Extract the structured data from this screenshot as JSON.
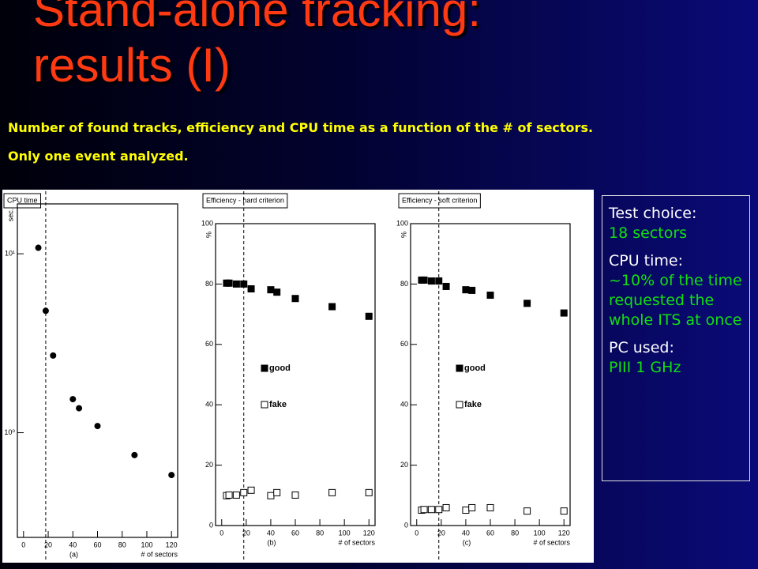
{
  "title": [
    "Stand-alone tracking:",
    "results (I)"
  ],
  "subtitle": [
    "Number of found tracks, efficiency and CPU time as a function of the # of sectors.",
    "Only one event analyzed."
  ],
  "notes": [
    {
      "label": "Test choice:",
      "text": "18 sectors"
    },
    {
      "label": "CPU time:",
      "text": "~10% of the time requested the whole ITS at once"
    },
    {
      "label": "PC used:",
      "text": "PIII 1 GHz"
    }
  ],
  "chart_data": [
    {
      "type": "scatter",
      "title": "CPU time",
      "x_label": "# of sectors",
      "y_label": "sec.",
      "panel_label": "(a)",
      "yscale": "log",
      "x": [
        12,
        18,
        24,
        40,
        45,
        60,
        90,
        120
      ],
      "series": [
        {
          "color": "#000000",
          "marker": "circle",
          "values": [
            10.8,
            4.8,
            2.7,
            1.54,
            1.37,
            1.09,
            0.75,
            0.58
          ]
        }
      ],
      "xlim": [
        -5,
        125
      ],
      "xticks": [
        0,
        20,
        40,
        60,
        80,
        100,
        120
      ],
      "ylim": [
        0.26,
        19
      ],
      "yticks": [
        {
          "value": 1,
          "label": "10⁰"
        },
        {
          "value": 10,
          "label": "10¹"
        }
      ],
      "vline": 18
    },
    {
      "type": "scatter",
      "title": "Efficiency - hard criterion",
      "x_label": "# of sectors",
      "y_label": "%",
      "panel_label": "(b)",
      "legend": "center-left",
      "x": [
        4,
        6,
        12,
        18,
        24,
        40,
        45,
        60,
        90,
        120
      ],
      "series": [
        {
          "name": "good",
          "color": "#000000",
          "marker": "square-filled",
          "values": [
            80.3,
            80.3,
            80,
            80,
            78.4,
            78.1,
            77.3,
            75.2,
            72.5,
            69.3
          ]
        },
        {
          "name": "fake",
          "color": "#000000",
          "marker": "square-open",
          "values": [
            9.9,
            10.1,
            10.1,
            10.9,
            11.7,
            9.9,
            10.9,
            10.1,
            10.9,
            10.9
          ]
        }
      ],
      "xlim": [
        -5,
        125
      ],
      "xticks": [
        0,
        20,
        40,
        60,
        80,
        100,
        120
      ],
      "ylim": [
        0,
        100
      ],
      "yticks": [
        0,
        20,
        40,
        60,
        80,
        100
      ],
      "vline": 18
    },
    {
      "type": "scatter",
      "title": "Efficiency - soft criterion",
      "x_label": "# of sectors",
      "y_label": "%",
      "panel_label": "(c)",
      "legend": "center-left",
      "x": [
        4,
        6,
        12,
        18,
        24,
        40,
        45,
        60,
        90,
        120
      ],
      "series": [
        {
          "name": "good",
          "color": "#000000",
          "marker": "square-filled",
          "values": [
            81.3,
            81.3,
            81,
            81,
            79.2,
            78.1,
            77.9,
            76.3,
            73.6,
            70.4
          ]
        },
        {
          "name": "fake",
          "color": "#000000",
          "marker": "square-open",
          "values": [
            5.1,
            5.3,
            5.3,
            5.3,
            5.9,
            5.1,
            5.9,
            5.9,
            4.8,
            4.8
          ]
        }
      ],
      "xlim": [
        -5,
        125
      ],
      "xticks": [
        0,
        20,
        40,
        60,
        80,
        100,
        120
      ],
      "ylim": [
        0,
        100
      ],
      "yticks": [
        0,
        20,
        40,
        60,
        80,
        100
      ],
      "vline": 18
    }
  ]
}
